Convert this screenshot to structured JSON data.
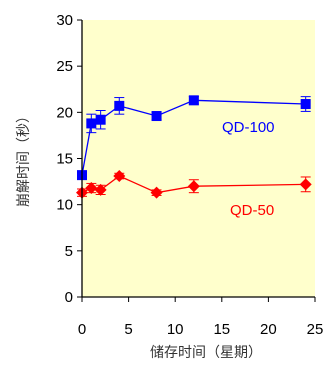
{
  "chart_data": {
    "type": "line",
    "title": "",
    "xlabel": "储存时间（星期）",
    "ylabel": "崩解时间（秒）",
    "xlim": [
      0,
      25
    ],
    "ylim": [
      0,
      30
    ],
    "xticks": [
      0,
      5,
      10,
      15,
      20,
      25
    ],
    "yticks": [
      0,
      5,
      10,
      15,
      20,
      25,
      30
    ],
    "xtick_labels": [
      "0",
      "5",
      "10",
      "15",
      "20",
      "25"
    ],
    "ytick_labels": [
      "0",
      "5",
      "10",
      "15",
      "20",
      "25",
      "30"
    ],
    "grid": false,
    "plot_background": "#ffffcc",
    "series": [
      {
        "name": "QD-100",
        "color": "#0000ff",
        "marker": "square",
        "x": [
          0,
          1,
          2,
          4,
          8,
          12,
          24
        ],
        "y": [
          13.2,
          18.8,
          19.2,
          20.7,
          19.6,
          21.3,
          20.9
        ],
        "err": [
          0.4,
          1.0,
          1.0,
          0.9,
          0.4,
          0.4,
          0.8
        ]
      },
      {
        "name": "QD-50",
        "color": "#ff0000",
        "marker": "diamond",
        "x": [
          0,
          1,
          2,
          4,
          8,
          12,
          24
        ],
        "y": [
          11.3,
          11.8,
          11.6,
          13.1,
          11.3,
          12.0,
          12.2
        ],
        "err": [
          0.4,
          0.5,
          0.5,
          0.3,
          0.3,
          0.7,
          0.8
        ]
      }
    ]
  }
}
